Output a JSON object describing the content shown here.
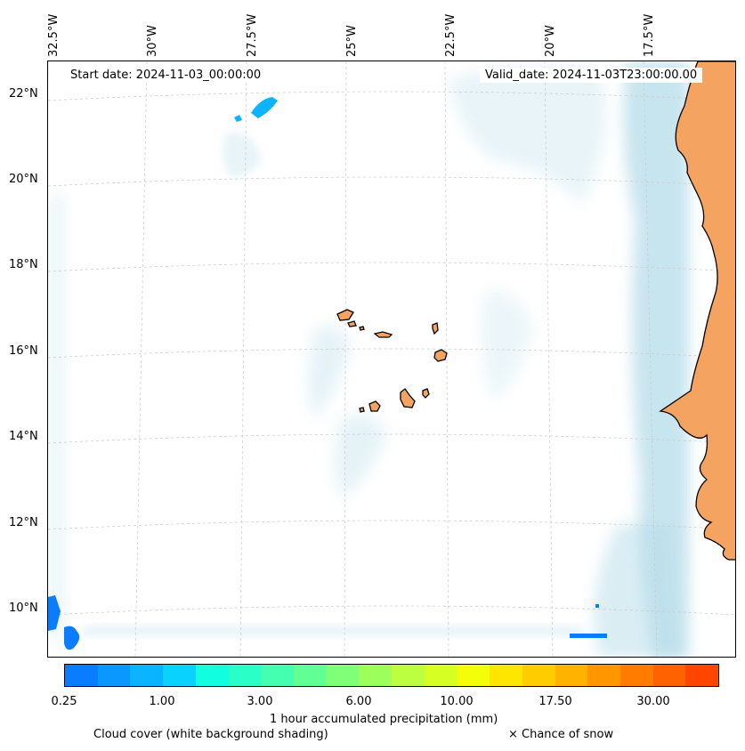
{
  "map": {
    "start_date": "Start date: 2024-11-03_00:00:00",
    "valid_date": "Valid_date: 2024-11-03T23:00:00.00",
    "longitude_labels": [
      "32.5°W",
      "30°W",
      "27.5°W",
      "25°W",
      "22.5°W",
      "20°W",
      "17.5°W"
    ],
    "latitude_labels": [
      "22°N",
      "20°N",
      "18°N",
      "16°N",
      "14°N",
      "12°N",
      "10°N"
    ],
    "layers": {
      "ocean": "#ffffff",
      "cloud_cover": "#add8e6",
      "land": "#f4a460",
      "coastline": "#000000"
    },
    "islands": [
      "Santo Antão",
      "São Vicente",
      "Santa Luzia",
      "São Nicolau",
      "Sal",
      "Boa Vista",
      "Santiago",
      "Fogo",
      "Brava",
      "Maio"
    ]
  },
  "colorbar": {
    "colors": [
      "#0a7cff",
      "#0a98ff",
      "#0bb4ff",
      "#0ad2ff",
      "#11ffe0",
      "#2affc8",
      "#45ffb0",
      "#62ff94",
      "#80ff78",
      "#9cff5c",
      "#bbff40",
      "#d6ff24",
      "#f2ff08",
      "#ffe600",
      "#ffcc00",
      "#ffb200",
      "#ff9600",
      "#ff7c00",
      "#ff6200",
      "#ff4500"
    ],
    "tick_labels": [
      "0.25",
      "1.00",
      "3.00",
      "6.00",
      "10.00",
      "17.50",
      "30.00"
    ],
    "label": "1 hour accumulated precipitation (mm)"
  },
  "legend": {
    "cloud_cover": "Cloud cover (white background shading)",
    "snow": "× Chance of snow"
  }
}
